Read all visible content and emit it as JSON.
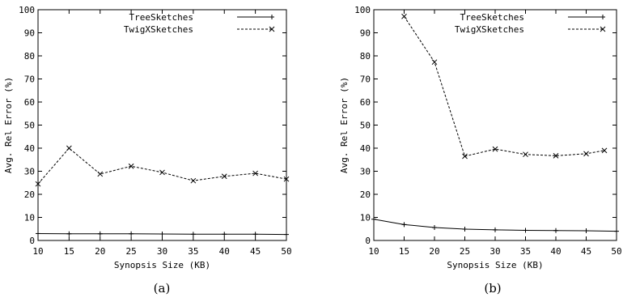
{
  "chart_data": [
    {
      "type": "line",
      "caption": "(a)",
      "xlabel": "Synopsis Size (KB)",
      "ylabel": "Avg. Rel Error (%)",
      "xlim": [
        10,
        50
      ],
      "ylim": [
        0,
        100
      ],
      "xticks": [
        10,
        15,
        20,
        25,
        30,
        35,
        40,
        45,
        50
      ],
      "yticks": [
        0,
        10,
        20,
        30,
        40,
        50,
        60,
        70,
        80,
        90,
        100
      ],
      "grid": false,
      "legend_position": "top-right",
      "series": [
        {
          "name": "TreeSketches",
          "marker": "plus",
          "line": "solid",
          "x": [
            10,
            15,
            20,
            25,
            30,
            35,
            40,
            45,
            50
          ],
          "y": [
            3.0,
            2.9,
            2.9,
            2.9,
            2.8,
            2.7,
            2.7,
            2.7,
            2.6
          ]
        },
        {
          "name": "TwigXSketches",
          "marker": "cross",
          "line": "dashed",
          "x": [
            10,
            15,
            20,
            25,
            30,
            35,
            40,
            45,
            50
          ],
          "y": [
            24.5,
            40.0,
            28.8,
            32.2,
            29.5,
            25.9,
            27.8,
            29.1,
            26.6
          ]
        }
      ]
    },
    {
      "type": "line",
      "caption": "(b)",
      "xlabel": "Synopsis Size (KB)",
      "ylabel": "Avg. Rel Error (%)",
      "xlim": [
        10,
        50
      ],
      "ylim": [
        0,
        100
      ],
      "xticks": [
        10,
        15,
        20,
        25,
        30,
        35,
        40,
        45,
        50
      ],
      "yticks": [
        0,
        10,
        20,
        30,
        40,
        50,
        60,
        70,
        80,
        90,
        100
      ],
      "grid": false,
      "legend_position": "top-right",
      "series": [
        {
          "name": "TreeSketches",
          "marker": "plus",
          "line": "solid",
          "x": [
            10,
            15,
            20,
            25,
            30,
            35,
            40,
            45,
            50
          ],
          "y": [
            9.2,
            6.9,
            5.6,
            4.9,
            4.6,
            4.4,
            4.3,
            4.2,
            4.0
          ]
        },
        {
          "name": "TwigXSketches",
          "marker": "cross",
          "line": "dashed",
          "x": [
            15,
            20,
            25,
            30,
            35,
            40,
            45,
            48
          ],
          "y": [
            97.1,
            77.3,
            36.5,
            39.6,
            37.3,
            36.7,
            37.6,
            39.0
          ]
        }
      ]
    }
  ]
}
